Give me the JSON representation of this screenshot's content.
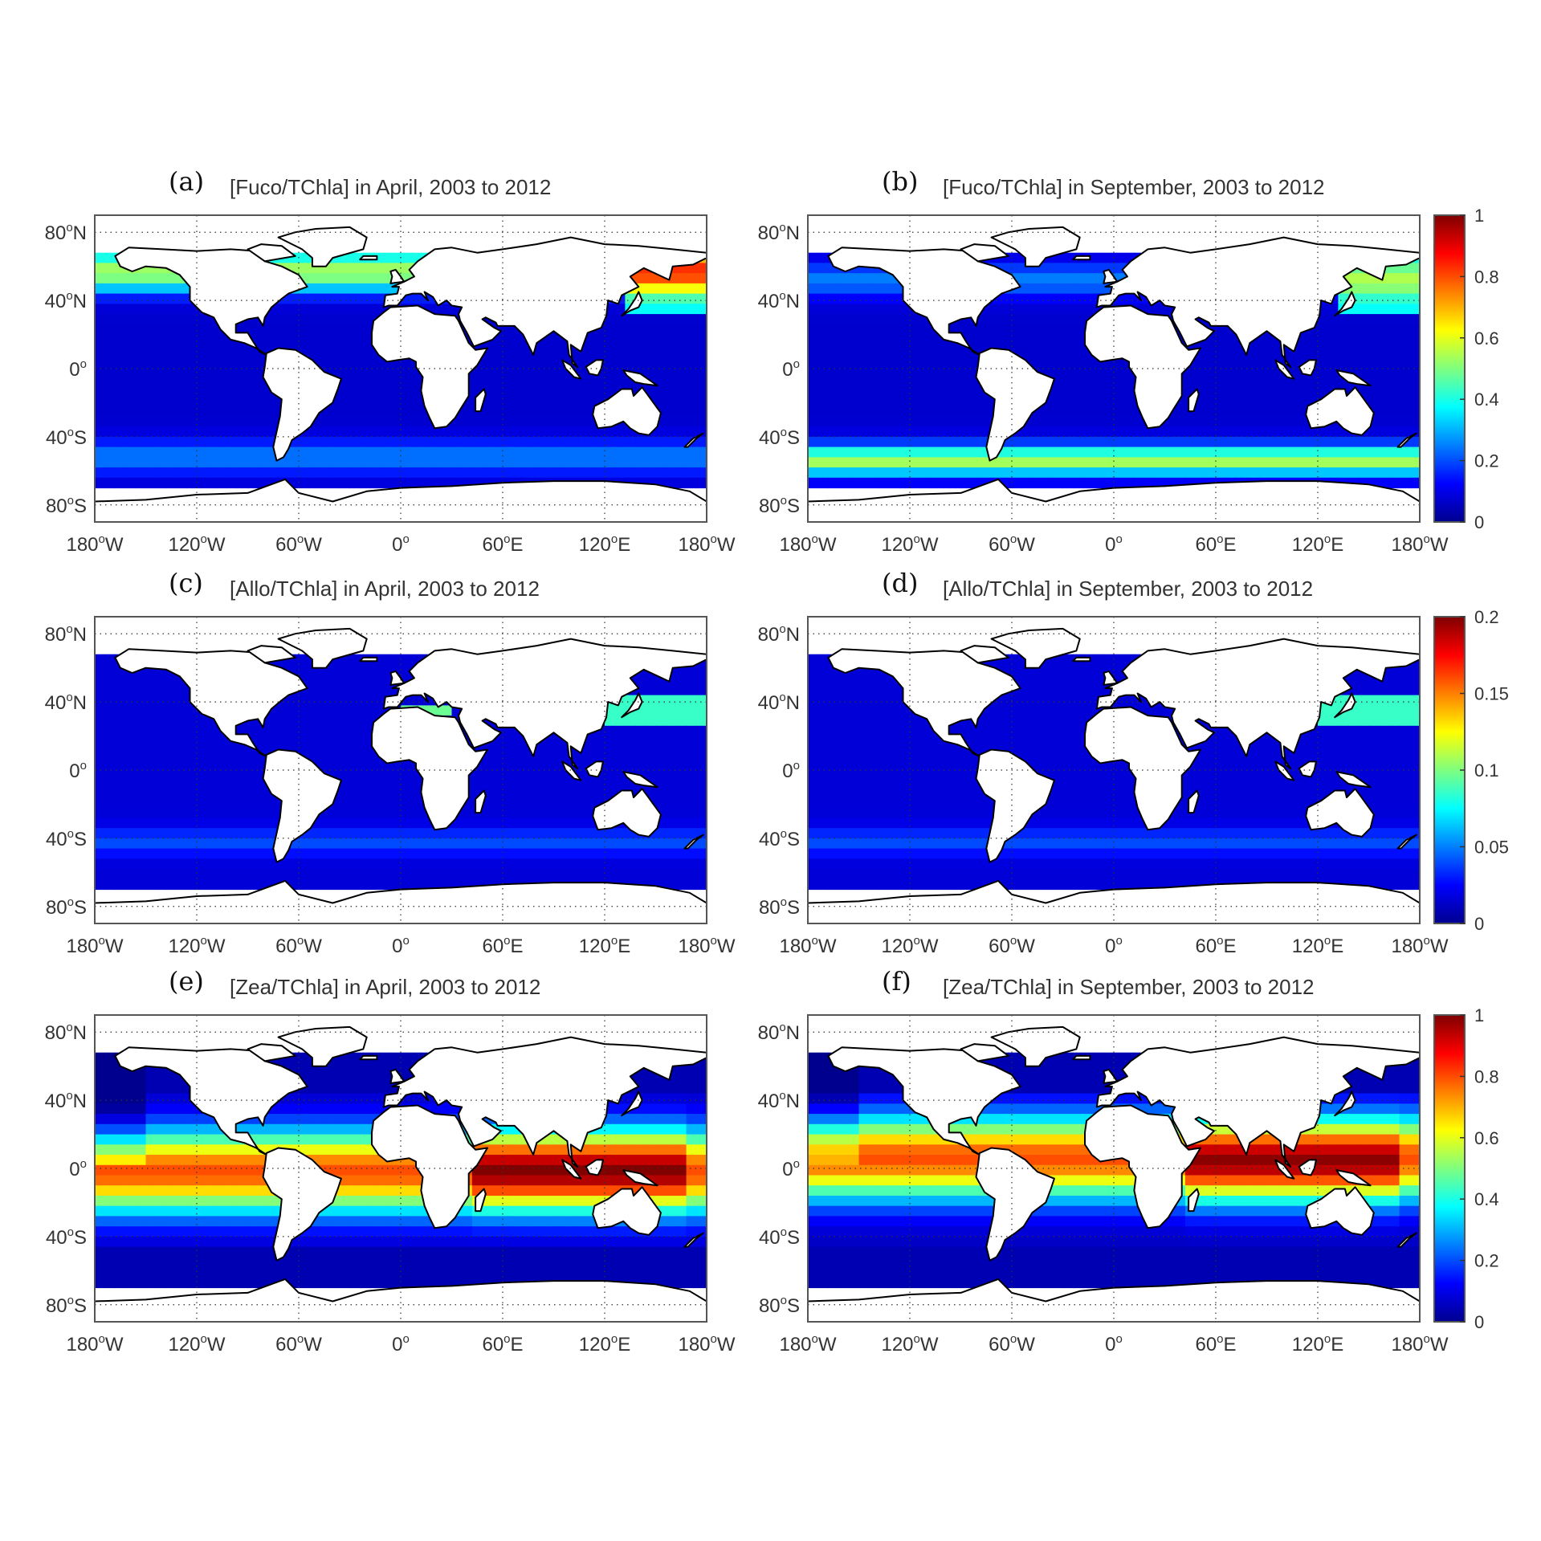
{
  "axes": {
    "lat_ticks": [
      {
        "lat": 80,
        "deg": "80",
        "hemi": "N"
      },
      {
        "lat": 40,
        "deg": "40",
        "hemi": "N"
      },
      {
        "lat": 0,
        "deg": "0",
        "hemi": ""
      },
      {
        "lat": -40,
        "deg": "40",
        "hemi": "S"
      },
      {
        "lat": -80,
        "deg": "80",
        "hemi": "S"
      }
    ],
    "lon_ticks": [
      {
        "lon": -180,
        "deg": "180",
        "hemi": "W"
      },
      {
        "lon": -120,
        "deg": "120",
        "hemi": "W"
      },
      {
        "lon": -60,
        "deg": "60",
        "hemi": "W"
      },
      {
        "lon": 0,
        "deg": "0",
        "hemi": ""
      },
      {
        "lon": 60,
        "deg": "60",
        "hemi": "E"
      },
      {
        "lon": 120,
        "deg": "120",
        "hemi": "E"
      },
      {
        "lon": 180,
        "deg": "180",
        "hemi": "W"
      }
    ],
    "lat_range": [
      -90,
      90
    ],
    "lon_range": [
      -180,
      180
    ],
    "grid": "dotted"
  },
  "colormap": [
    "#00008f",
    "#0000ff",
    "#007fff",
    "#00ffff",
    "#7fff7f",
    "#ffff00",
    "#ff7f00",
    "#ff0000",
    "#7f0000"
  ],
  "colors": {
    "land": "#ffffff",
    "coast": "#000000",
    "frame": "#555555",
    "text": "#333333"
  },
  "panels": [
    {
      "letter": "(a)",
      "title": "[Fuco/TChla] in April, 2003 to 2012",
      "pigment": "fuco"
    },
    {
      "letter": "(b)",
      "title": "[Fuco/TChla] in September, 2003 to 2012",
      "pigment": "fuco"
    },
    {
      "letter": "(c)",
      "title": "[Allo/TChla] in April, 2003 to 2012",
      "pigment": "allo"
    },
    {
      "letter": "(d)",
      "title": "[Allo/TChla] in September, 2003 to 2012",
      "pigment": "allo"
    },
    {
      "letter": "(e)",
      "title": "[Zea/TChla] in April, 2003 to 2012",
      "pigment": "zea"
    },
    {
      "letter": "(f)",
      "title": "[Zea/TChla] in September, 2003 to 2012",
      "pigment": "zea"
    }
  ],
  "colorbars": [
    {
      "row": 0,
      "min": 0,
      "max": 1,
      "ticks": [
        "1",
        "0.8",
        "0.6",
        "0.4",
        "0.2",
        "0"
      ]
    },
    {
      "row": 1,
      "min": 0,
      "max": 0.2,
      "ticks": [
        "0.2",
        "0.15",
        "0.1",
        "0.05",
        "0"
      ]
    },
    {
      "row": 2,
      "min": 0,
      "max": 1,
      "ticks": [
        "1",
        "0.8",
        "0.6",
        "0.4",
        "0.2",
        "0"
      ]
    }
  ]
}
